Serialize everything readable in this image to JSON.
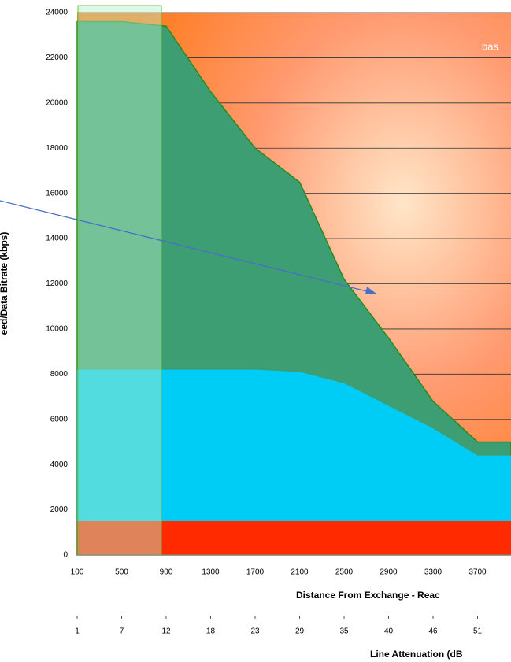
{
  "chart_data": {
    "type": "area",
    "y_label": "eed/Data Bitrate (kbps)",
    "x_label": "Distance From Exchange - Reac",
    "x2_label": "Line Attenuation (dB",
    "annotation": "bas",
    "categories": [
      "100",
      "500",
      "900",
      "1300",
      "1700",
      "2100",
      "2500",
      "2900",
      "3300",
      "3700"
    ],
    "categories2": [
      "1",
      "7",
      "12",
      "18",
      "23",
      "29",
      "35",
      "40",
      "46",
      "51"
    ],
    "series": [
      {
        "color": "#3c9e72",
        "values": [
          23600,
          23600,
          23400,
          20500,
          18000,
          16500,
          12200,
          9600,
          6800,
          5000
        ]
      },
      {
        "color": "#00cdf5",
        "values": [
          8200,
          8200,
          8200,
          8200,
          8200,
          8100,
          7600,
          6600,
          5600,
          4400
        ]
      },
      {
        "color": "#ff2a00",
        "values": [
          1500,
          1500,
          1500,
          1500,
          1500,
          1500,
          1500,
          1500,
          1500,
          1500
        ]
      }
    ],
    "ylim": [
      0,
      24000
    ],
    "yticks": [
      0,
      2000,
      4000,
      6000,
      8000,
      10000,
      12000,
      14000,
      16000,
      18000,
      20000,
      22000,
      24000
    ],
    "grid": true
  }
}
